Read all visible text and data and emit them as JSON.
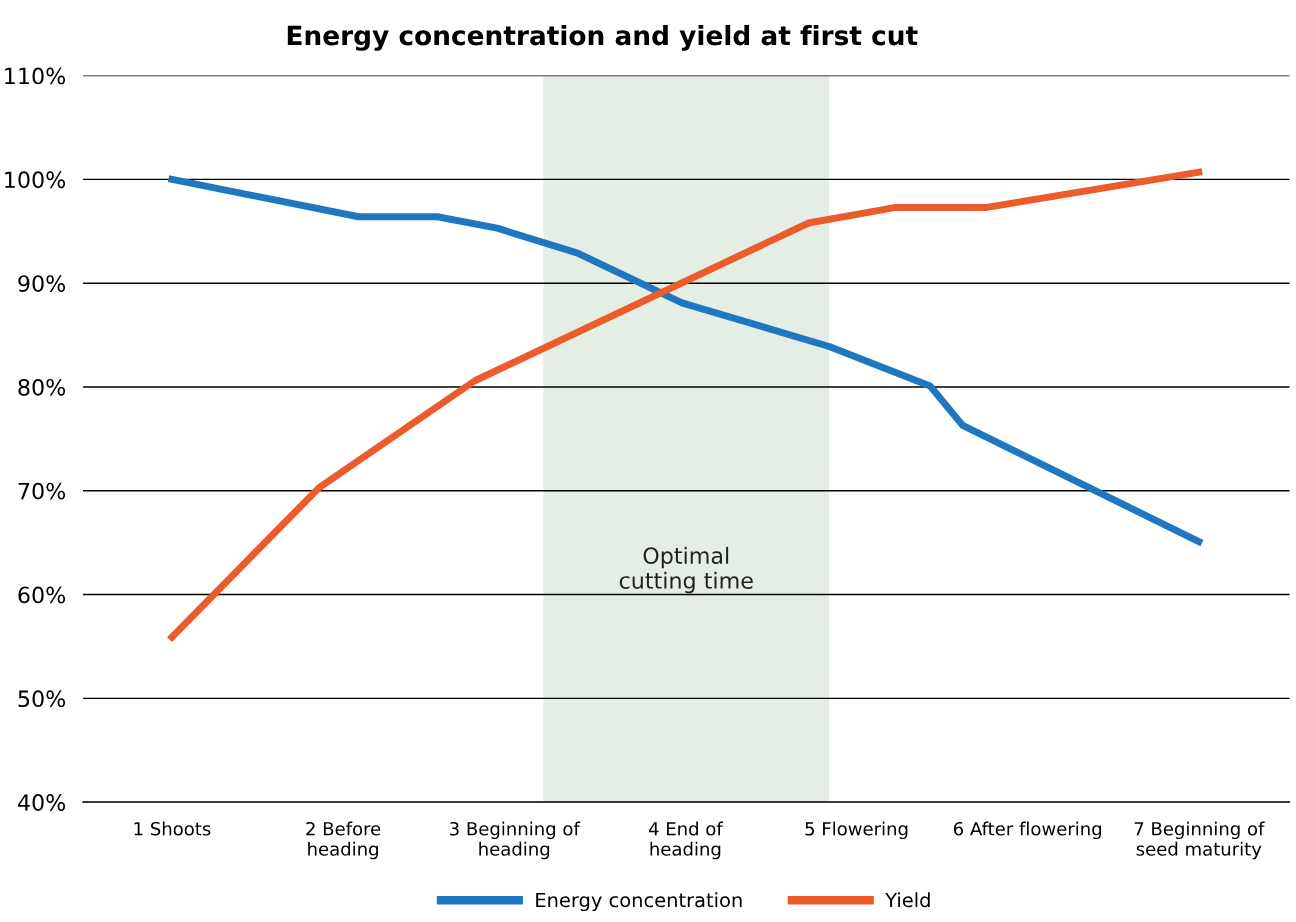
{
  "chart_data": {
    "type": "line",
    "title": "Energy concentration and yield at first cut",
    "series": [
      {
        "name": "Energy concentration",
        "color": "#1f77c0",
        "x": [
          1,
          2.09,
          2.55,
          2.9,
          3.37,
          3.98,
          4.84,
          5.43,
          5.62,
          7
        ],
        "values": [
          100,
          96.4,
          96.4,
          95.3,
          92.9,
          88.1,
          83.9,
          80.1,
          76.3,
          65.1
        ]
      },
      {
        "name": "Yield",
        "color": "#ec5b2c",
        "x": [
          1,
          1.86,
          2.77,
          4.72,
          5.23,
          5.76,
          7
        ],
        "values": [
          55.9,
          70.3,
          80.6,
          95.8,
          97.3,
          97.3,
          100.7
        ]
      }
    ],
    "xlim": [
      0.48,
      7.53
    ],
    "xticks": [
      {
        "value": 1,
        "label": "1 Shoots"
      },
      {
        "value": 2,
        "label": "2 Before\nheading"
      },
      {
        "value": 3,
        "label": "3 Beginning of\nheading"
      },
      {
        "value": 4,
        "label": "4 End of\nheading"
      },
      {
        "value": 5,
        "label": "5 Flowering"
      },
      {
        "value": 6,
        "label": "6 After flowering"
      },
      {
        "value": 7,
        "label": "7 Beginning of\nseed maturity"
      }
    ],
    "ylim": [
      40,
      110
    ],
    "yticks": [
      {
        "value": 40,
        "label": "40%"
      },
      {
        "value": 50,
        "label": "50%"
      },
      {
        "value": 60,
        "label": "60%"
      },
      {
        "value": 70,
        "label": "70%"
      },
      {
        "value": 80,
        "label": "80%"
      },
      {
        "value": 90,
        "label": "90%"
      },
      {
        "value": 100,
        "label": "100%"
      },
      {
        "value": 110,
        "label": "110%"
      }
    ],
    "bands": [
      {
        "axis": "x",
        "from": 3.17,
        "to": 4.84,
        "label": "Optimal\ncutting time",
        "color": "#e4eee5"
      }
    ],
    "grid": "y",
    "legend": "bottom",
    "marker": "none",
    "line_style": "solid"
  }
}
